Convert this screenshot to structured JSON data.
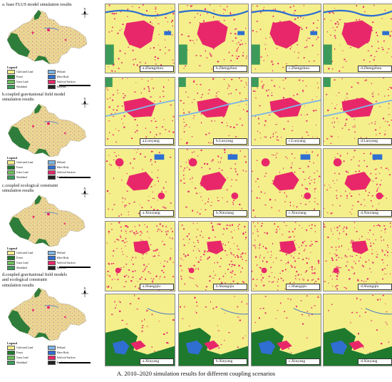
{
  "scenarios": [
    {
      "title": "a. base FLUS model simulation results"
    },
    {
      "title": "b.coupled gravitational field model\nsimulation results"
    },
    {
      "title": "c.coupled ecological constraint\nsimulation results"
    },
    {
      "title": "d.coupled gravitational field models\nand ecological constraint\nsimulation results"
    }
  ],
  "legend": {
    "title": "Legend",
    "items": [
      {
        "label": "Cultivated Land",
        "color": "#f4ef8a"
      },
      {
        "label": "Wetland",
        "color": "#7fb6e6"
      },
      {
        "label": "Forest",
        "color": "#1f7a2e"
      },
      {
        "label": "Water Body",
        "color": "#2f6fd1"
      },
      {
        "label": "Grass Land",
        "color": "#6bbf59"
      },
      {
        "label": "Artificial Surfaces",
        "color": "#e8276a"
      },
      {
        "label": "Shrubland",
        "color": "#3c9b5a"
      },
      {
        "label": "Bareland",
        "color": "#222222"
      }
    ]
  },
  "tiles": [
    [
      "a.Zhengzhou",
      "b.Zhengzhou",
      "c.Zhengzhou",
      "d.Zhengzhou"
    ],
    [
      "a.Luoyang",
      "b.Luoyang",
      "c.Luoyang",
      "d.Luoyang"
    ],
    [
      "a.Xinxiang",
      "b.Xinxiang",
      "c.Xinxiang",
      "d.Xinxiang"
    ],
    [
      "a.Shangqiu",
      "b.Shangqiu",
      "c.Shangqiu",
      "d.Shangqiu"
    ],
    [
      "a.Xinyang",
      "b.Xinyang",
      "c.Xinyang",
      "d.Xinyang"
    ]
  ],
  "caption": "A. 2010–2020 simulation results for different coupling scenarios"
}
